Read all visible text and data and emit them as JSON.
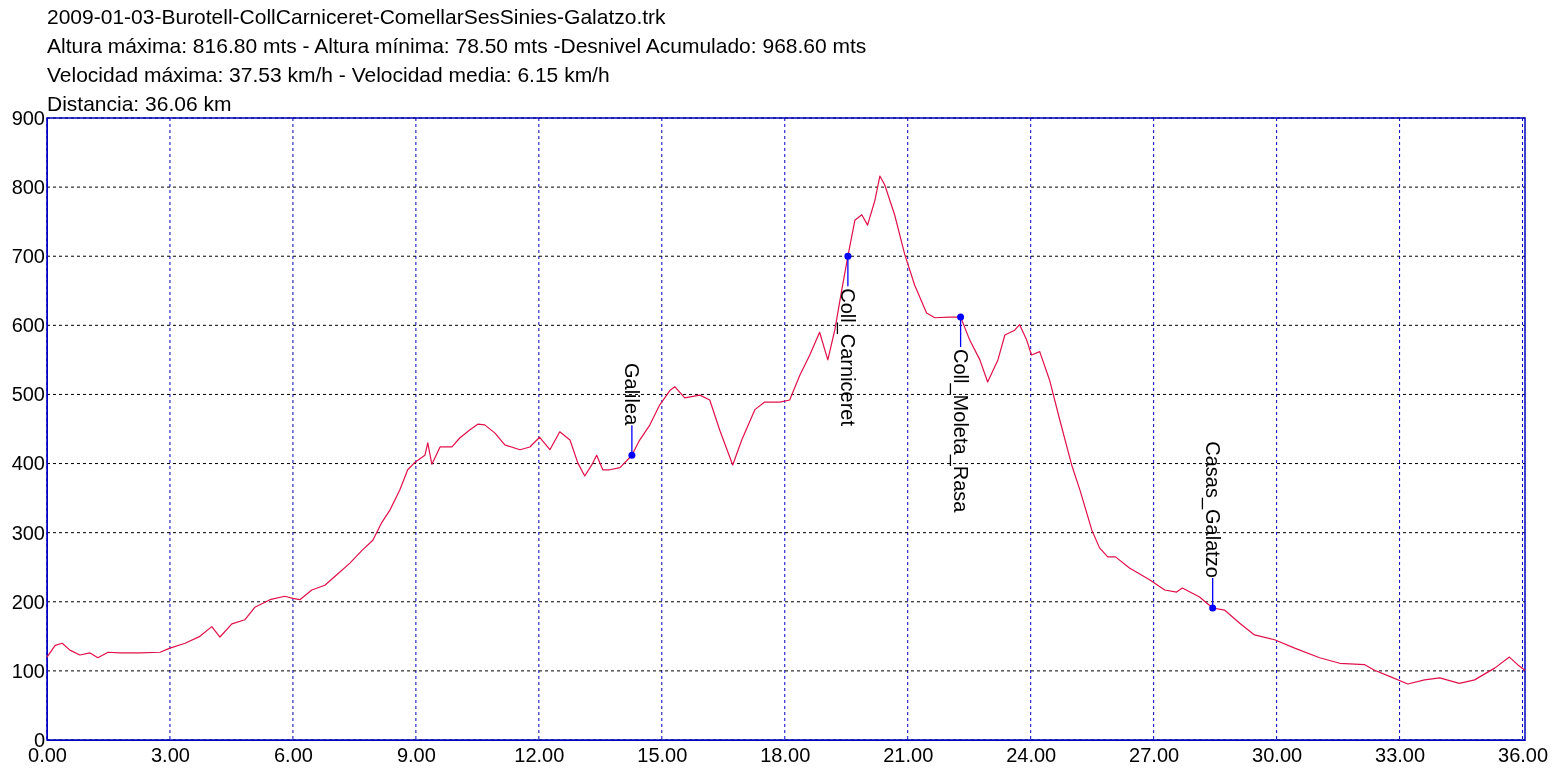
{
  "chart_data": {
    "type": "line",
    "title": "2009-01-03-Burotell-CollCarniceret-ComellarSesSinies-Galatzo.trk",
    "subtitle": "Altura máxima: 816.80 mts - Altura mínima: 78.50 mts -Desnivel Acumulado: 968.60 mts",
    "annotations": [
      "Velocidad máxima: 37.53 km/h - Velocidad media: 6.15 km/h",
      "Distancia: 36.06 km",
      {
        "text": "Galilea",
        "x": 14.27,
        "y": 412
      },
      {
        "text": "Coll_Carniceret",
        "x": 19.54,
        "y": 700
      },
      {
        "text": "Coll_Moleta_Rasa",
        "x": 22.29,
        "y": 612
      },
      {
        "text": "Casas_Galatzo",
        "x": 28.44,
        "y": 191
      }
    ],
    "x": [
      0,
      0.2,
      0.37,
      0.56,
      0.8,
      1.05,
      1.24,
      1.49,
      1.78,
      2.27,
      2.76,
      3.0,
      3.37,
      3.73,
      4.02,
      4.22,
      4.51,
      4.83,
      5.07,
      5.44,
      5.8,
      6.0,
      6.17,
      6.46,
      6.78,
      7.07,
      7.39,
      7.68,
      7.95,
      8.17,
      8.37,
      8.61,
      8.8,
      8.98,
      9.22,
      9.29,
      9.39,
      9.59,
      9.88,
      10.07,
      10.32,
      10.51,
      10.68,
      10.93,
      11.17,
      11.54,
      11.78,
      12.02,
      12.27,
      12.51,
      12.76,
      12.95,
      13.12,
      13.29,
      13.41,
      13.56,
      13.73,
      13.98,
      14.27,
      14.46,
      14.71,
      14.95,
      15.2,
      15.32,
      15.56,
      15.93,
      16.17,
      16.41,
      16.73,
      16.95,
      17.27,
      17.51,
      17.88,
      18.12,
      18.37,
      18.61,
      18.85,
      19.05,
      19.22,
      19.39,
      19.54,
      19.71,
      19.88,
      20.02,
      20.2,
      20.32,
      20.44,
      20.68,
      20.93,
      21.17,
      21.46,
      21.66,
      22.02,
      22.29,
      22.51,
      22.76,
      22.95,
      23.2,
      23.37,
      23.61,
      23.73,
      23.9,
      24.02,
      24.22,
      24.46,
      24.71,
      25.0,
      25.2,
      25.49,
      25.68,
      25.88,
      26.07,
      26.41,
      26.9,
      27.27,
      27.56,
      27.7,
      28.12,
      28.44,
      28.73,
      29.1,
      29.46,
      29.95,
      30.44,
      31.05,
      31.54,
      32.15,
      32.39,
      32.8,
      33.2,
      33.61,
      33.98,
      34.46,
      34.83,
      35.32,
      35.68,
      35.88,
      36.06
    ],
    "series": [
      {
        "color": "#e0104a",
        "values": [
          120,
          137,
          140,
          130,
          123,
          126,
          119,
          127,
          126,
          126,
          127,
          133,
          140,
          150,
          164,
          149,
          168,
          174,
          192,
          203,
          208,
          205,
          203,
          217,
          224,
          239,
          256,
          274,
          289,
          315,
          333,
          362,
          391,
          402,
          412,
          430,
          399,
          424,
          424,
          437,
          449,
          457,
          456,
          444,
          427,
          420,
          424,
          438,
          420,
          446,
          434,
          401,
          382,
          398,
          412,
          391,
          391,
          394,
          412,
          434,
          456,
          485,
          506,
          511,
          495,
          499,
          492,
          449,
          398,
          434,
          478,
          489,
          489,
          492,
          528,
          557,
          590,
          550,
          593,
          651,
          700,
          752,
          760,
          745,
          781,
          816,
          803,
          760,
          702,
          658,
          618,
          611,
          612,
          612,
          579,
          550,
          518,
          550,
          586,
          593,
          601,
          579,
          557,
          562,
          521,
          463,
          398,
          362,
          304,
          278,
          265,
          265,
          249,
          232,
          217,
          214,
          220,
          207,
          191,
          188,
          169,
          152,
          145,
          133,
          119,
          111,
          109,
          101,
          91,
          81,
          87,
          90,
          82,
          87,
          104,
          120,
          109,
          101
        ]
      }
    ],
    "xlim": [
      0,
      36.06
    ],
    "ylim": [
      0,
      900
    ],
    "xticks": [
      {
        "value": 0,
        "label": "0.00"
      },
      {
        "value": 3,
        "label": "3.00"
      },
      {
        "value": 6,
        "label": "6.00"
      },
      {
        "value": 9,
        "label": "9.00"
      },
      {
        "value": 12,
        "label": "12.00"
      },
      {
        "value": 15,
        "label": "15.00"
      },
      {
        "value": 18,
        "label": "18.00"
      },
      {
        "value": 21,
        "label": "21.00"
      },
      {
        "value": 24,
        "label": "24.00"
      },
      {
        "value": 27,
        "label": "27.00"
      },
      {
        "value": 30,
        "label": "30.00"
      },
      {
        "value": 33,
        "label": "33.00"
      },
      {
        "value": 36,
        "label": "36.00"
      }
    ],
    "yticks": [
      0,
      100,
      200,
      300,
      400,
      500,
      600,
      700,
      800,
      900
    ],
    "grid": true,
    "marker": "none",
    "line_style": "solid"
  }
}
